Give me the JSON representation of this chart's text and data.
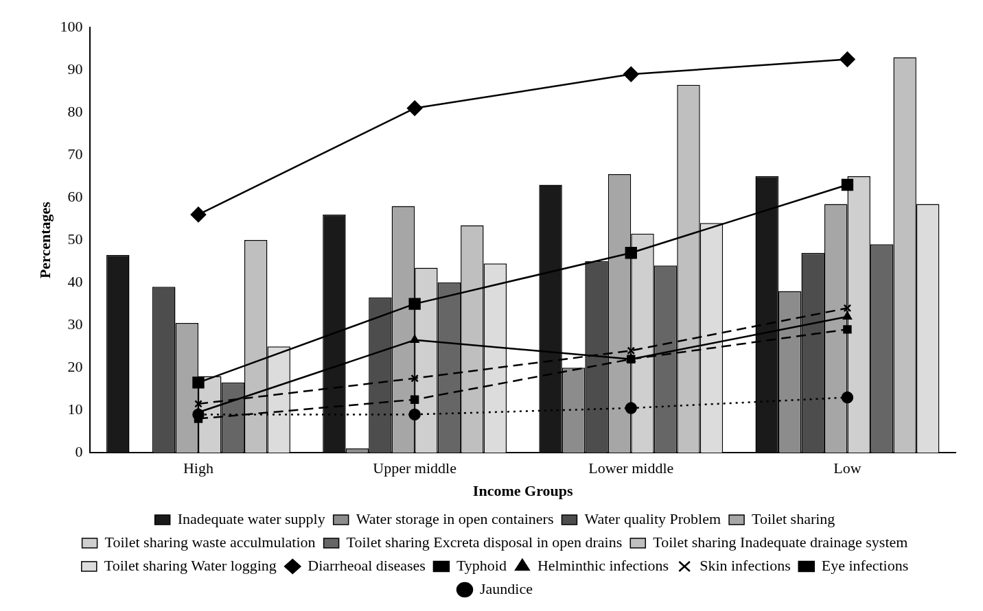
{
  "chart_data": {
    "type": "bar",
    "xlabel": "Income Groups",
    "ylabel": "Percentages",
    "categories": [
      "High",
      "Upper middle",
      "Lower middle",
      "Low"
    ],
    "ylim": [
      0,
      100
    ],
    "yticks": [
      0,
      10,
      20,
      30,
      40,
      50,
      60,
      70,
      80,
      90,
      100
    ],
    "grid": false,
    "legend": "bottom",
    "series": [
      {
        "name": "Inadequate water supply",
        "color": "#1a1a1a",
        "values": [
          46.5,
          56,
          63,
          65
        ]
      },
      {
        "name": "Water storage in open containers",
        "color": "#8c8c8c",
        "values": [
          0,
          1,
          20,
          38
        ]
      },
      {
        "name": "Water quality Problem",
        "color": "#4d4d4d",
        "values": [
          39,
          36.5,
          45,
          47
        ]
      },
      {
        "name": "Toilet sharing",
        "color": "#a6a6a6",
        "values": [
          30.5,
          58,
          65.5,
          58.5
        ]
      },
      {
        "name": "Toilet sharing waste acculmulation",
        "color": "#cfcfcf",
        "values": [
          18,
          43.5,
          51.5,
          65
        ]
      },
      {
        "name": "Toilet sharing Excreta disposal in open drains",
        "color": "#666666",
        "values": [
          16.5,
          40,
          44,
          49
        ]
      },
      {
        "name": "Toilet sharing Inadequate drainage system",
        "color": "#bfbfbf",
        "values": [
          50,
          53.5,
          86.5,
          93
        ]
      },
      {
        "name": "Toilet sharing Water logging",
        "color": "#dcdcdc",
        "values": [
          25,
          44.5,
          54,
          58.5
        ]
      },
      {
        "name": "Diarrheoal diseases",
        "type": "line",
        "color": "#000000",
        "marker": "diamond",
        "line_style": "solid",
        "values": [
          56,
          81,
          89,
          92.5
        ]
      },
      {
        "name": "Typhoid",
        "type": "line",
        "color": "#000000",
        "marker": "square",
        "line_style": "solid",
        "values": [
          16.5,
          35,
          47,
          63
        ]
      },
      {
        "name": "Helminthic infections",
        "type": "line",
        "color": "#000000",
        "marker": "triangle",
        "line_style": "solid",
        "values": [
          9.5,
          26.5,
          22,
          32
        ]
      },
      {
        "name": "Skin infections",
        "type": "line",
        "color": "#000000",
        "marker": "cross",
        "line_style": "dashed",
        "values": [
          11.5,
          17.5,
          24,
          34
        ]
      },
      {
        "name": "Eye infections",
        "type": "line",
        "color": "#000000",
        "marker": "square",
        "line_style": "dashed",
        "values": [
          8,
          12.5,
          22,
          29
        ]
      },
      {
        "name": "Jaundice",
        "type": "line",
        "color": "#000000",
        "marker": "circle",
        "line_style": "dotted",
        "values": [
          9,
          9,
          10.5,
          13
        ]
      }
    ]
  }
}
